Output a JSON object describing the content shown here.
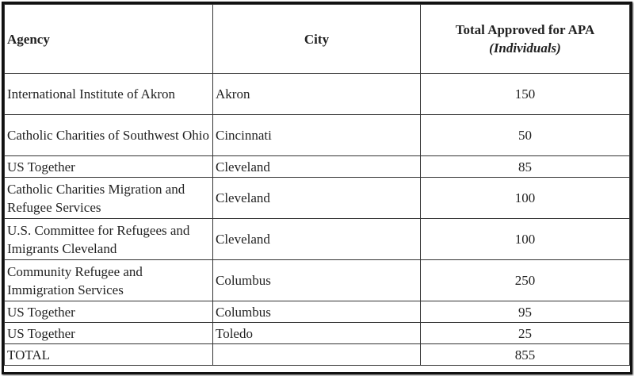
{
  "table": {
    "header": {
      "agency": "Agency",
      "city": "City",
      "total": "Total Approved for APA",
      "total_unit": "(Individuals)"
    },
    "rows": [
      [
        "International Institute of Akron",
        "Akron",
        150
      ],
      [
        "Catholic Charities of Southwest Ohio",
        "Cincinnati",
        50
      ],
      [
        "US Together",
        "Cleveland",
        85
      ],
      [
        "Catholic Charities Migration and Refugee Services",
        "Cleveland",
        100
      ],
      [
        "U.S. Committee for Refugees and Imigrants Cleveland",
        "Cleveland",
        100
      ],
      [
        "Community Refugee and Immigration Services",
        "Columbus",
        250
      ],
      [
        "US Together",
        "Columbus",
        95
      ],
      [
        "US Together",
        "Toledo",
        25
      ]
    ],
    "total": {
      "label": "TOTAL",
      "value": 855
    }
  }
}
